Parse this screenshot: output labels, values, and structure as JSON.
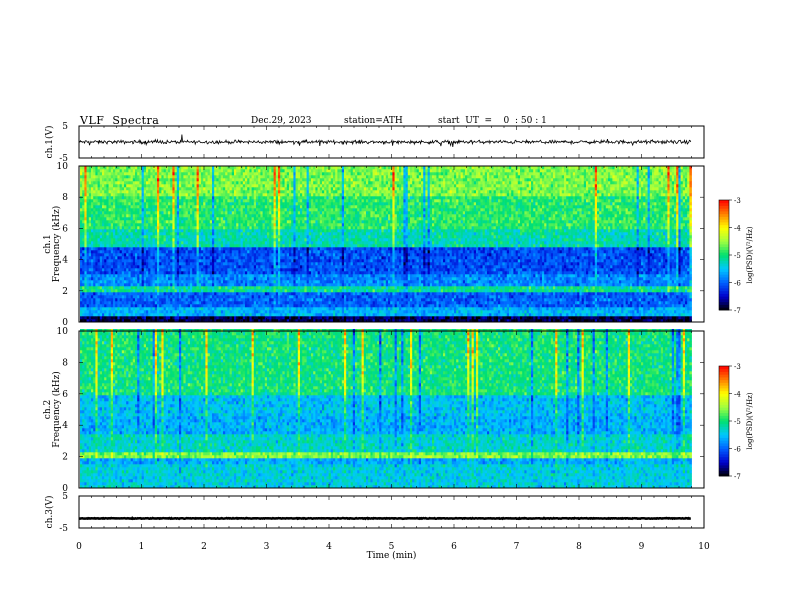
{
  "header": {
    "title": "VLF  Spectra",
    "date": "Dec.29, 2023",
    "station": "station=ATH",
    "start_ut": "start  UT  =    0  : 50 : 1"
  },
  "colors": {
    "frame": "#000000",
    "colormap": [
      "#000000",
      "#0000cc",
      "#0060ff",
      "#00c8ff",
      "#00e070",
      "#a0ff40",
      "#ffff00",
      "#ff8000",
      "#ff0000",
      "#ffffff"
    ]
  },
  "chart_data": [
    {
      "type": "line",
      "panel": "ch1-waveform",
      "ylabel": "ch.1(V)",
      "ylim": [
        -5,
        5
      ],
      "yticks": [
        "5",
        "-5"
      ],
      "xlim": [
        0,
        10
      ],
      "description_values": {
        "baseline": 0,
        "noise_amplitude": 0.8
      }
    },
    {
      "type": "heatmap",
      "panel": "ch1-spectrogram",
      "ylabel_lines": [
        "ch.1",
        "Frequency (kHz)"
      ],
      "ylim": [
        0,
        10
      ],
      "yticks": [
        "0",
        "2",
        "4",
        "6",
        "8",
        "10"
      ],
      "xlim": [
        0,
        10
      ],
      "data_end_min": 9.8,
      "colorbar": {
        "label": "log(PSD)(V²/Hz)",
        "range": [
          -7,
          -3
        ],
        "ticks": [
          "-3",
          "-4",
          "-5",
          "-6",
          "-7"
        ]
      },
      "bands": [
        {
          "from": 0.0,
          "to": 0.3,
          "level": -6.8
        },
        {
          "from": 0.3,
          "to": 1.0,
          "level": -5.6
        },
        {
          "from": 1.0,
          "to": 1.9,
          "level": -6.0
        },
        {
          "from": 1.9,
          "to": 2.3,
          "level": -5.1
        },
        {
          "from": 2.3,
          "to": 3.1,
          "level": -5.8
        },
        {
          "from": 3.1,
          "to": 4.9,
          "level": -6.1
        },
        {
          "from": 4.9,
          "to": 6.0,
          "level": -5.2
        },
        {
          "from": 6.0,
          "to": 8.0,
          "level": -4.9
        },
        {
          "from": 8.0,
          "to": 10.0,
          "level": -4.6
        }
      ]
    },
    {
      "type": "heatmap",
      "panel": "ch2-spectrogram",
      "ylabel_lines": [
        "ch.2",
        "Frequency (kHz)"
      ],
      "ylim": [
        0,
        10
      ],
      "yticks": [
        "0",
        "2",
        "4",
        "6",
        "8",
        "10"
      ],
      "xlim": [
        0,
        10
      ],
      "data_end_min": 9.8,
      "colorbar": {
        "label": "log(PSD)(V²/Hz)",
        "range": [
          -7,
          -3
        ],
        "ticks": [
          "-3",
          "-4",
          "-5",
          "-6",
          "-7"
        ]
      },
      "bands": [
        {
          "from": 0.0,
          "to": 1.5,
          "level": -5.4
        },
        {
          "from": 1.5,
          "to": 2.0,
          "level": -5.6
        },
        {
          "from": 2.0,
          "to": 2.3,
          "level": -4.6
        },
        {
          "from": 2.3,
          "to": 3.5,
          "level": -5.3
        },
        {
          "from": 3.5,
          "to": 4.5,
          "level": -5.6
        },
        {
          "from": 4.5,
          "to": 6.0,
          "level": -5.5
        },
        {
          "from": 6.0,
          "to": 10.0,
          "level": -5.0
        }
      ]
    },
    {
      "type": "line",
      "panel": "ch3-waveform",
      "ylabel": "ch.3(V)",
      "ylim": [
        -5,
        5
      ],
      "yticks": [
        "5",
        "-5"
      ],
      "xlim": [
        0,
        10
      ],
      "description_values": {
        "baseline": -2,
        "noise_amplitude": 0.15
      }
    }
  ],
  "xaxis": {
    "label": "Time  (min)",
    "ticks": [
      "0",
      "1",
      "2",
      "3",
      "4",
      "5",
      "6",
      "7",
      "8",
      "9",
      "10"
    ]
  }
}
